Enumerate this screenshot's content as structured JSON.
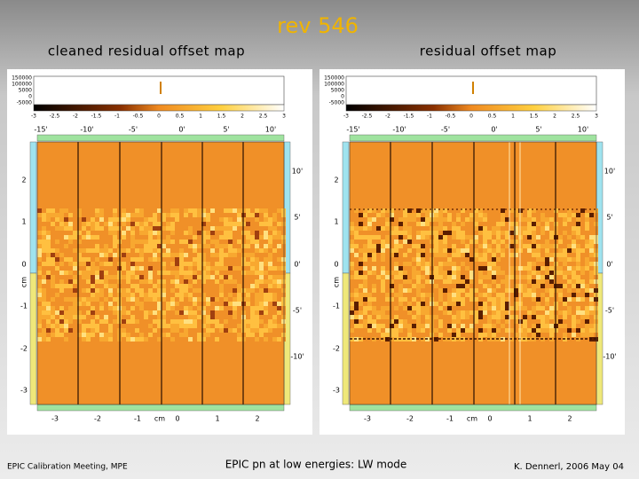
{
  "header": {
    "title": "rev 546"
  },
  "panels": [
    {
      "title": "cleaned residual offset map"
    },
    {
      "title": "residual offset map"
    }
  ],
  "axes": {
    "histogram_labels": [
      "150000",
      "100000",
      "5000",
      "0",
      "-5000"
    ],
    "colorbar_labels": [
      "-3",
      "-2.5",
      "-2",
      "-1.5",
      "-1",
      "-0.5",
      "0",
      "0.5",
      "1",
      "1.5",
      "2",
      "2.5",
      "3"
    ],
    "top_labels": [
      "-15'",
      "-10'",
      "-5'",
      "0'",
      "5'",
      "10'"
    ],
    "left_labels": [
      "2",
      "1",
      "0",
      "-1",
      "-2",
      "-3"
    ],
    "left_unit": "cm",
    "right_labels": [
      "10'",
      "5'",
      "0'",
      "-5'",
      "-10'"
    ],
    "bottom_labels": [
      "-3",
      "-2",
      "-1",
      "cm",
      "0",
      "1",
      "2"
    ]
  },
  "footer": {
    "left": "EPIC Calibration Meeting, MPE",
    "center": "EPIC pn at low energies: LW mode",
    "right": "K. Dennerl, 2006 May 04"
  }
}
